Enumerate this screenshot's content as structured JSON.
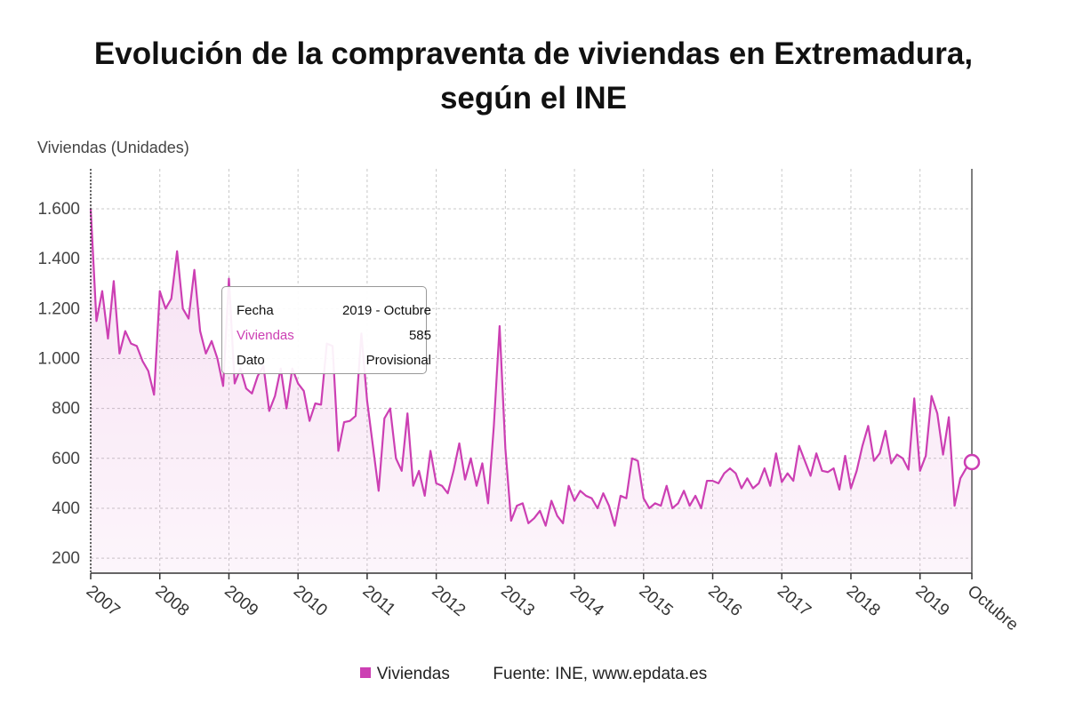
{
  "title": {
    "line1": "Evolución de la compraventa de viviendas en Extremadura,",
    "line2": "según el INE"
  },
  "chart_data": {
    "type": "area",
    "ylabel": "Viviendas (Unidades)",
    "xlabel": "",
    "ylim": [
      140,
      1760
    ],
    "yticks": [
      200,
      400,
      600,
      800,
      1000,
      1200,
      1400,
      1600
    ],
    "ytick_labels": [
      "200",
      "400",
      "600",
      "800",
      "1.000",
      "1.200",
      "1.400",
      "1.600"
    ],
    "xticks": [
      2007,
      2008,
      2009,
      2010,
      2011,
      2012,
      2013,
      2014,
      2015,
      2016,
      2017,
      2018,
      2019
    ],
    "xtick_labels": [
      "2007",
      "2008",
      "2009",
      "2010",
      "2011",
      "2012",
      "2013",
      "2014",
      "2015",
      "2016",
      "2017",
      "2018",
      "2019"
    ],
    "end_label": "Octubre",
    "start": "2007-01",
    "end": "2019-10",
    "grid": true,
    "legend_position": "bottom",
    "series": [
      {
        "name": "Viviendas",
        "color": "#cc3fb3",
        "values": [
          1600,
          1150,
          1270,
          1080,
          1310,
          1020,
          1110,
          1060,
          1050,
          990,
          950,
          855,
          1270,
          1200,
          1240,
          1430,
          1200,
          1160,
          1355,
          1110,
          1020,
          1070,
          1000,
          890,
          1320,
          900,
          960,
          880,
          860,
          930,
          970,
          790,
          850,
          960,
          800,
          960,
          900,
          870,
          750,
          820,
          815,
          1060,
          1050,
          630,
          745,
          750,
          770,
          1100,
          830,
          650,
          470,
          760,
          800,
          600,
          550,
          780,
          490,
          550,
          450,
          630,
          500,
          490,
          460,
          550,
          660,
          515,
          600,
          490,
          580,
          420,
          730,
          1130,
          640,
          350,
          410,
          420,
          340,
          360,
          390,
          330,
          430,
          370,
          340,
          490,
          430,
          470,
          450,
          440,
          400,
          460,
          410,
          330,
          450,
          440,
          600,
          590,
          440,
          400,
          420,
          410,
          490,
          400,
          420,
          470,
          410,
          450,
          400,
          510,
          510,
          500,
          540,
          560,
          540,
          480,
          520,
          480,
          500,
          560,
          490,
          620,
          505,
          540,
          510,
          650,
          590,
          530,
          620,
          550,
          545,
          560,
          475,
          610,
          480,
          550,
          650,
          730,
          590,
          620,
          710,
          580,
          615,
          600,
          555,
          840,
          550,
          610,
          850,
          780,
          615,
          765,
          410,
          520,
          560,
          585
        ]
      }
    ],
    "tooltip": {
      "rows": [
        {
          "key": "Fecha",
          "value": "2019 - Octubre"
        },
        {
          "key": "Viviendas",
          "value": "585"
        },
        {
          "key": "Dato",
          "value": "Provisional"
        }
      ]
    }
  },
  "legend": {
    "series_label": "Viviendas",
    "source": "Fuente: INE, www.epdata.es"
  }
}
